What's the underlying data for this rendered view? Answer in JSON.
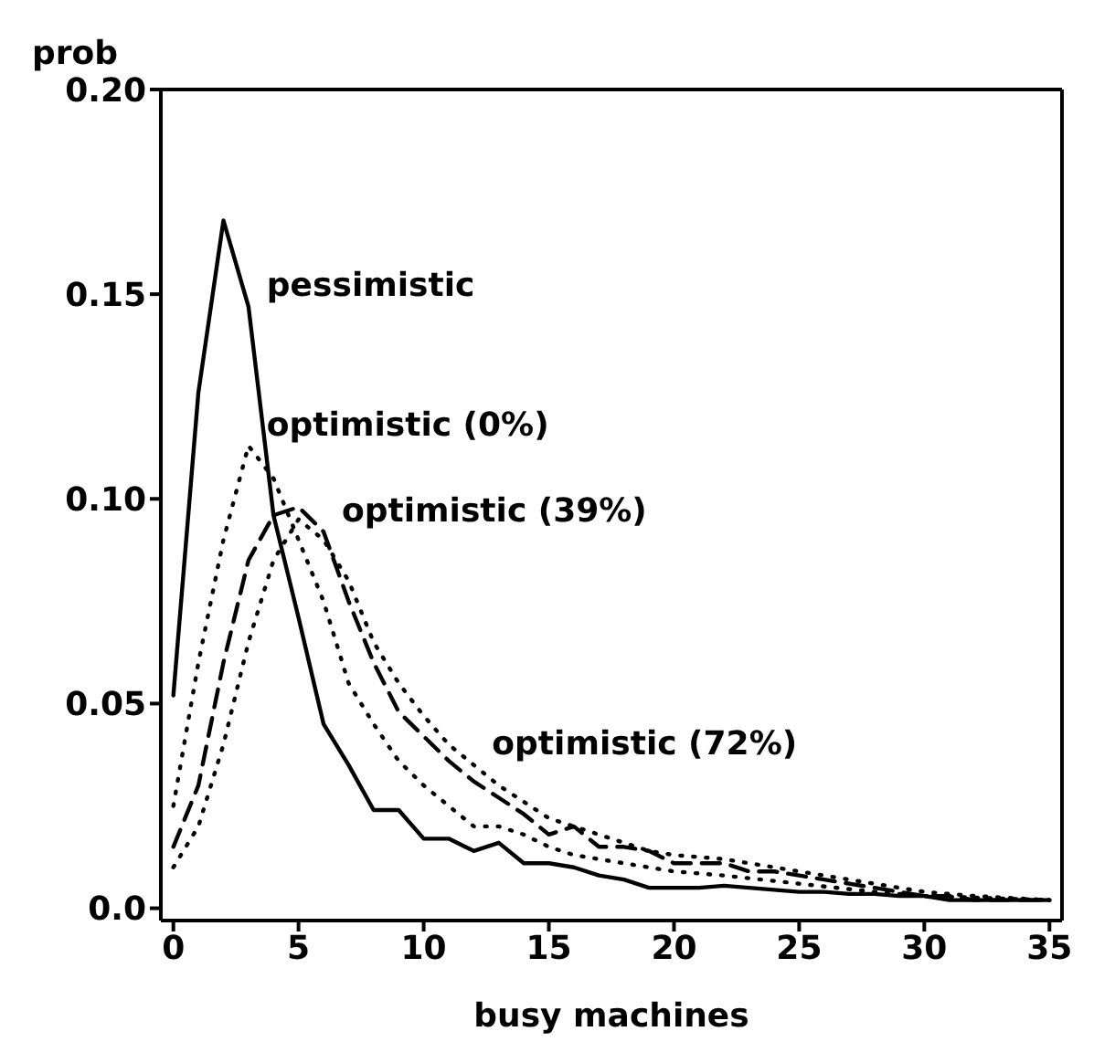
{
  "chart_data": {
    "type": "line",
    "ylabel": "prob",
    "xlabel": "busy machines",
    "xlim": [
      -0.5,
      35.5
    ],
    "xticks": [
      0,
      5,
      10,
      15,
      20,
      25,
      30,
      35
    ],
    "ylim": [
      -0.003,
      0.2
    ],
    "yticks": [
      {
        "value": 0,
        "label": "0.0"
      },
      0.05,
      {
        "value": 0.1,
        "label": "0.10"
      },
      0.15,
      {
        "value": 0.2,
        "label": "0.20"
      }
    ],
    "grid": false,
    "legend": false,
    "marker": "none",
    "series": [
      {
        "color": "#000000",
        "line_style": "solid",
        "x": [
          0,
          1,
          2,
          3,
          4,
          5,
          6,
          7,
          8,
          9,
          10,
          11,
          12,
          13,
          14,
          15,
          16,
          17,
          18,
          19,
          20,
          21,
          22,
          23,
          24,
          25,
          26,
          27,
          28,
          29,
          30,
          31,
          32,
          33,
          34,
          35
        ],
        "values": [
          0.052,
          0.126,
          0.168,
          0.147,
          0.096,
          0.071,
          0.045,
          0.035,
          0.024,
          0.024,
          0.017,
          0.017,
          0.014,
          0.016,
          0.011,
          0.011,
          0.01,
          0.008,
          0.007,
          0.005,
          0.005,
          0.005,
          0.0055,
          0.005,
          0.0045,
          0.004,
          0.004,
          0.0035,
          0.0035,
          0.003,
          0.003,
          0.002,
          0.002,
          0.002,
          0.002,
          0.002
        ]
      },
      {
        "color": "#000000",
        "line_style": "dotted",
        "x": [
          0,
          1,
          2,
          3,
          4,
          5,
          6,
          7,
          8,
          9,
          10,
          11,
          12,
          13,
          14,
          15,
          16,
          17,
          18,
          19,
          20,
          22,
          25,
          28,
          30,
          35
        ],
        "values": [
          0.025,
          0.06,
          0.09,
          0.113,
          0.105,
          0.09,
          0.075,
          0.055,
          0.045,
          0.036,
          0.03,
          0.025,
          0.02,
          0.02,
          0.018,
          0.015,
          0.013,
          0.012,
          0.011,
          0.01,
          0.009,
          0.008,
          0.006,
          0.004,
          0.003,
          0.002
        ]
      },
      {
        "color": "#000000",
        "line_style": "dashed",
        "x": [
          0,
          1,
          2,
          3,
          4,
          5,
          6,
          7,
          8,
          9,
          10,
          11,
          12,
          13,
          14,
          15,
          16,
          17,
          18,
          19,
          20,
          21,
          22,
          23,
          24,
          25,
          26,
          27,
          28,
          29,
          30,
          31,
          32,
          33,
          34,
          35
        ],
        "values": [
          0.015,
          0.03,
          0.06,
          0.085,
          0.096,
          0.098,
          0.092,
          0.075,
          0.06,
          0.048,
          0.042,
          0.036,
          0.031,
          0.027,
          0.023,
          0.018,
          0.02,
          0.015,
          0.015,
          0.014,
          0.011,
          0.011,
          0.011,
          0.009,
          0.009,
          0.008,
          0.007,
          0.006,
          0.005,
          0.004,
          0.003,
          0.003,
          0.002,
          0.002,
          0.002,
          0.002
        ]
      },
      {
        "color": "#000000",
        "line_style": "dotted",
        "x": [
          0,
          1,
          2,
          3,
          4,
          5,
          6,
          7,
          8,
          9,
          10,
          11,
          12,
          13,
          14,
          15,
          16,
          17,
          18,
          19,
          20,
          22,
          24,
          26,
          28,
          30,
          32,
          35
        ],
        "values": [
          0.01,
          0.02,
          0.04,
          0.065,
          0.085,
          0.095,
          0.09,
          0.08,
          0.065,
          0.055,
          0.047,
          0.04,
          0.035,
          0.03,
          0.026,
          0.022,
          0.02,
          0.018,
          0.016,
          0.014,
          0.013,
          0.012,
          0.01,
          0.008,
          0.006,
          0.004,
          0.003,
          0.002
        ]
      }
    ],
    "annotations": [
      {
        "text": "pessimistic",
        "x": 3,
        "y": 0.147
      },
      {
        "text": "optimistic (0%)",
        "x": 3,
        "y": 0.113
      },
      {
        "text": "optimistic (39%)",
        "x": 6,
        "y": 0.092
      },
      {
        "text": "optimistic (72%)",
        "x": 12,
        "y": 0.035
      }
    ]
  }
}
